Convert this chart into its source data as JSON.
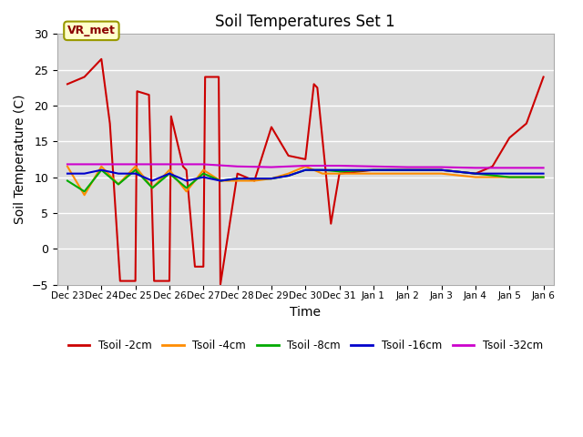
{
  "title": "Soil Temperatures Set 1",
  "xlabel": "Time",
  "ylabel": "Soil Temperature (C)",
  "xlim": [
    -0.3,
    14.3
  ],
  "ylim": [
    -5,
    30
  ],
  "yticks": [
    -5,
    0,
    5,
    10,
    15,
    20,
    25,
    30
  ],
  "xtick_labels": [
    "Dec 23",
    "Dec 24",
    "Dec 25",
    "Dec 26",
    "Dec 27",
    "Dec 28",
    "Dec 29",
    "Dec 30",
    "Dec 31",
    "Jan 1",
    "Jan 2",
    "Jan 3",
    "Jan 4",
    "Jan 5",
    "Jan 6"
  ],
  "bg_color": "#dcdcdc",
  "annotation_text": "VR_met",
  "series": {
    "Tsoil -2cm": {
      "color": "#cc0000",
      "x": [
        0,
        0.5,
        1.0,
        1.25,
        1.55,
        2.0,
        2.05,
        2.4,
        2.55,
        3.0,
        3.05,
        3.4,
        3.5,
        3.75,
        4.0,
        4.05,
        4.45,
        4.5,
        5.0,
        5.5,
        6.0,
        6.5,
        7.0,
        7.25,
        7.35,
        7.75,
        8.0,
        9.0,
        10.0,
        11.0,
        12.0,
        12.5,
        13.0,
        13.5,
        14.0
      ],
      "y": [
        23,
        24,
        26.5,
        17.5,
        -4.5,
        -4.5,
        22,
        21.5,
        -4.5,
        -4.5,
        18.5,
        11.5,
        11.0,
        -2.5,
        -2.5,
        24,
        24,
        -5.0,
        10.5,
        9.5,
        17,
        13,
        12.5,
        23,
        22.5,
        3.5,
        10.5,
        11,
        11,
        11,
        10.5,
        11.5,
        15.5,
        17.5,
        24
      ]
    },
    "Tsoil -4cm": {
      "color": "#ff8c00",
      "x": [
        0,
        0.5,
        1.0,
        1.5,
        2.0,
        2.5,
        3.0,
        3.5,
        4.0,
        4.5,
        5.0,
        5.5,
        6.0,
        6.5,
        7.0,
        7.5,
        8.0,
        9.0,
        10.0,
        11.0,
        12.0,
        13.0,
        14.0
      ],
      "y": [
        11.5,
        7.5,
        11.5,
        9.0,
        11.5,
        8.5,
        11.0,
        8.0,
        11.0,
        9.5,
        9.5,
        9.5,
        9.8,
        10.5,
        11.5,
        10.5,
        10.5,
        10.5,
        10.5,
        10.5,
        10.0,
        10.0,
        10.0
      ]
    },
    "Tsoil -8cm": {
      "color": "#00aa00",
      "x": [
        0,
        0.5,
        1.0,
        1.5,
        2.0,
        2.5,
        3.0,
        3.5,
        4.0,
        4.5,
        5.0,
        5.5,
        6.0,
        6.5,
        7.0,
        7.5,
        8.0,
        9.0,
        10.0,
        11.0,
        12.0,
        13.0,
        14.0
      ],
      "y": [
        9.5,
        8.0,
        11.0,
        9.0,
        11.0,
        8.5,
        10.5,
        8.5,
        10.5,
        9.5,
        9.8,
        9.8,
        9.8,
        10.2,
        11.0,
        11.0,
        10.8,
        11.0,
        11.0,
        11.0,
        10.5,
        10.0,
        10.0
      ]
    },
    "Tsoil -16cm": {
      "color": "#0000cc",
      "x": [
        0,
        0.5,
        1.0,
        1.5,
        2.0,
        2.5,
        3.0,
        3.5,
        4.0,
        4.5,
        5.0,
        5.5,
        6.0,
        6.5,
        7.0,
        7.5,
        8.0,
        9.0,
        10.0,
        11.0,
        12.0,
        13.0,
        14.0
      ],
      "y": [
        10.5,
        10.5,
        11.0,
        10.5,
        10.5,
        9.5,
        10.5,
        9.5,
        10.0,
        9.5,
        9.8,
        9.8,
        9.8,
        10.2,
        11.0,
        11.0,
        11.0,
        11.0,
        11.0,
        11.0,
        10.5,
        10.5,
        10.5
      ]
    },
    "Tsoil -32cm": {
      "color": "#cc00cc",
      "x": [
        0,
        1.0,
        2.0,
        3.0,
        4.0,
        5.0,
        6.0,
        7.0,
        8.0,
        9.0,
        10.0,
        11.0,
        12.0,
        13.0,
        14.0
      ],
      "y": [
        11.8,
        11.8,
        11.8,
        11.8,
        11.8,
        11.5,
        11.4,
        11.6,
        11.6,
        11.5,
        11.4,
        11.4,
        11.3,
        11.3,
        11.3
      ]
    }
  }
}
